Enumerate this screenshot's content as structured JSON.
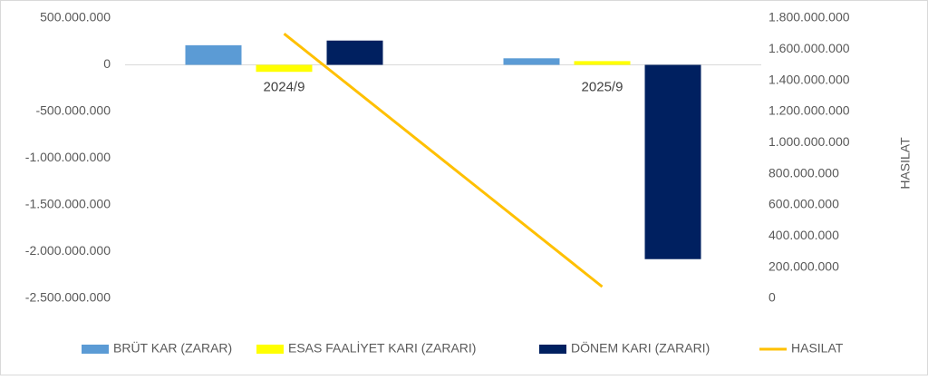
{
  "chart_data": {
    "type": "bar",
    "categories": [
      "2024/9",
      "2025/9"
    ],
    "series": [
      {
        "name": "BRÜT KAR (ZARAR)",
        "color": "#5b9bd5",
        "values": [
          210000000,
          70000000
        ]
      },
      {
        "name": "ESAS FAALİYET KARI (ZARARI)",
        "color": "#ffff00",
        "values": [
          -75000000,
          40000000
        ]
      },
      {
        "name": "DÖNEM KARI (ZARARI)",
        "color": "#002060",
        "values": [
          260000000,
          -2080000000
        ]
      },
      {
        "name": "HASILAT",
        "color": "#ffc000",
        "type": "line",
        "axis": "y2",
        "values": [
          1700000000,
          75000000
        ]
      }
    ],
    "ylim": [
      -2500000000,
      500000000
    ],
    "yticks": [
      {
        "value": 500000000,
        "label": "500.000.000"
      },
      0,
      {
        "value": -500000000,
        "label": "-500.000.000"
      },
      {
        "value": -1000000000,
        "label": "-1.000.000.000"
      },
      {
        "value": -1500000000,
        "label": "-1.500.000.000"
      },
      {
        "value": -2000000000,
        "label": "-2.000.000.000"
      },
      {
        "value": -2500000000,
        "label": "-2.500.000.000"
      }
    ],
    "y2lim": [
      0,
      1800000000
    ],
    "y2ticks": [
      {
        "value": 1800000000,
        "label": "1.800.000.000"
      },
      {
        "value": 1600000000,
        "label": "1.600.000.000"
      },
      {
        "value": 1400000000,
        "label": "1.400.000.000"
      },
      {
        "value": 1200000000,
        "label": "1.200.000.000"
      },
      {
        "value": 1000000000,
        "label": "1.000.000.000"
      },
      {
        "value": 800000000,
        "label": "800.000.000"
      },
      {
        "value": 600000000,
        "label": "600.000.000"
      },
      {
        "value": 400000000,
        "label": "400.000.000"
      },
      {
        "value": 200000000,
        "label": "200.000.000"
      },
      0
    ],
    "y2label": "HASILAT",
    "legend": "bottom"
  }
}
